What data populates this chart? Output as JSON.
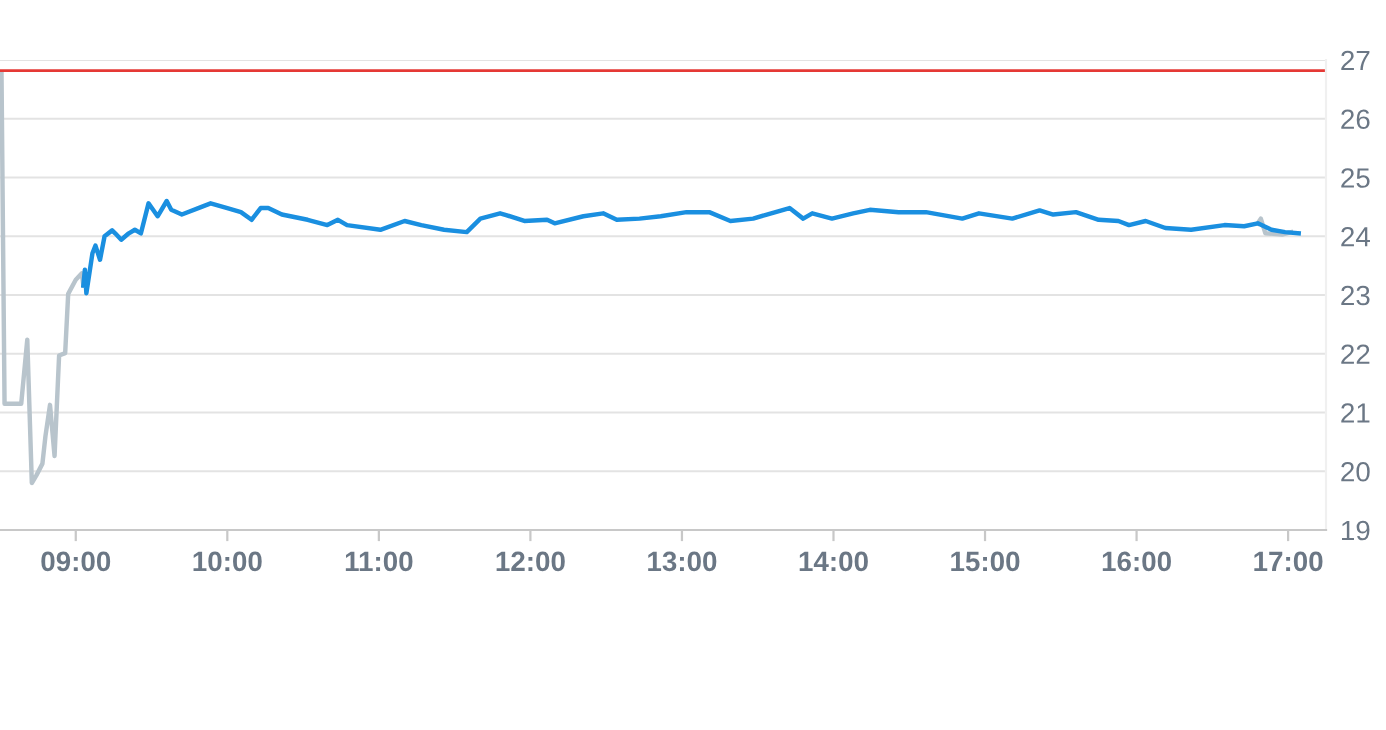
{
  "chart_data": {
    "type": "line",
    "xlim": [
      8.5,
      17.25
    ],
    "xticks": [
      {
        "value": 9,
        "label": "09:00"
      },
      {
        "value": 10,
        "label": "10:00"
      },
      {
        "value": 11,
        "label": "11:00"
      },
      {
        "value": 12,
        "label": "12:00"
      },
      {
        "value": 13,
        "label": "13:00"
      },
      {
        "value": 14,
        "label": "14:00"
      },
      {
        "value": 15,
        "label": "15:00"
      },
      {
        "value": 16,
        "label": "16:00"
      },
      {
        "value": 17,
        "label": "17:00"
      }
    ],
    "ylim": [
      19,
      27
    ],
    "yticks": [
      19,
      20,
      21,
      22,
      23,
      24,
      25,
      26,
      27
    ],
    "grid": "y",
    "legend": false,
    "ref_lines": [
      {
        "axis": "y",
        "value": 26.82,
        "color": "#e53935"
      }
    ],
    "series": [
      {
        "color": "#b8c4cc",
        "x": [
          8.51,
          8.53,
          8.64,
          8.68,
          8.71,
          8.74,
          8.78,
          8.8,
          8.83,
          8.86,
          8.89,
          8.93,
          8.95,
          9.0,
          9.04,
          9.05,
          null,
          16.8,
          16.82,
          16.85,
          16.96,
          17.02
        ],
        "values": [
          26.76,
          21.15,
          21.15,
          22.24,
          19.8,
          19.93,
          20.13,
          20.6,
          21.13,
          20.26,
          21.97,
          22.01,
          23.02,
          23.26,
          23.37,
          23.16,
          null,
          24.22,
          24.3,
          24.05,
          24.03,
          24.07
        ]
      },
      {
        "color": "#1a8fe0",
        "x": [
          9.05,
          9.06,
          9.07,
          9.11,
          9.13,
          9.16,
          9.19,
          9.24,
          9.26,
          9.3,
          9.35,
          9.39,
          9.43,
          9.48,
          9.51,
          9.54,
          9.6,
          9.63,
          9.7,
          9.83,
          9.89,
          10.0,
          10.09,
          10.16,
          10.22,
          10.27,
          10.36,
          10.53,
          10.66,
          10.73,
          10.79,
          11.01,
          11.17,
          11.28,
          11.43,
          11.58,
          11.67,
          11.8,
          11.84,
          11.96,
          12.11,
          12.16,
          12.35,
          12.48,
          12.57,
          12.72,
          12.86,
          13.03,
          13.18,
          13.32,
          13.47,
          13.56,
          13.71,
          13.8,
          13.86,
          13.99,
          14.13,
          14.24,
          14.43,
          14.61,
          14.85,
          14.96,
          15.18,
          15.36,
          15.45,
          15.6,
          15.75,
          15.88,
          15.95,
          16.06,
          16.19,
          16.36,
          16.58,
          16.71,
          16.8,
          16.89,
          16.98,
          17.07
        ],
        "values": [
          23.16,
          23.43,
          23.03,
          23.71,
          23.84,
          23.6,
          24.0,
          24.1,
          24.05,
          23.94,
          24.05,
          24.11,
          24.05,
          24.56,
          24.45,
          24.34,
          24.6,
          24.45,
          24.37,
          24.5,
          24.56,
          24.48,
          24.41,
          24.28,
          24.48,
          24.48,
          24.37,
          24.28,
          24.19,
          24.28,
          24.19,
          24.11,
          24.26,
          24.19,
          24.11,
          24.07,
          24.3,
          24.39,
          24.36,
          24.26,
          24.28,
          24.22,
          24.34,
          24.39,
          24.28,
          24.3,
          24.34,
          24.41,
          24.41,
          24.26,
          24.3,
          24.37,
          24.48,
          24.3,
          24.39,
          24.3,
          24.39,
          24.45,
          24.41,
          24.41,
          24.3,
          24.39,
          24.3,
          24.44,
          24.37,
          24.41,
          24.28,
          24.26,
          24.19,
          24.26,
          24.14,
          24.11,
          24.19,
          24.17,
          24.22,
          24.11,
          24.07,
          24.05
        ]
      }
    ]
  }
}
